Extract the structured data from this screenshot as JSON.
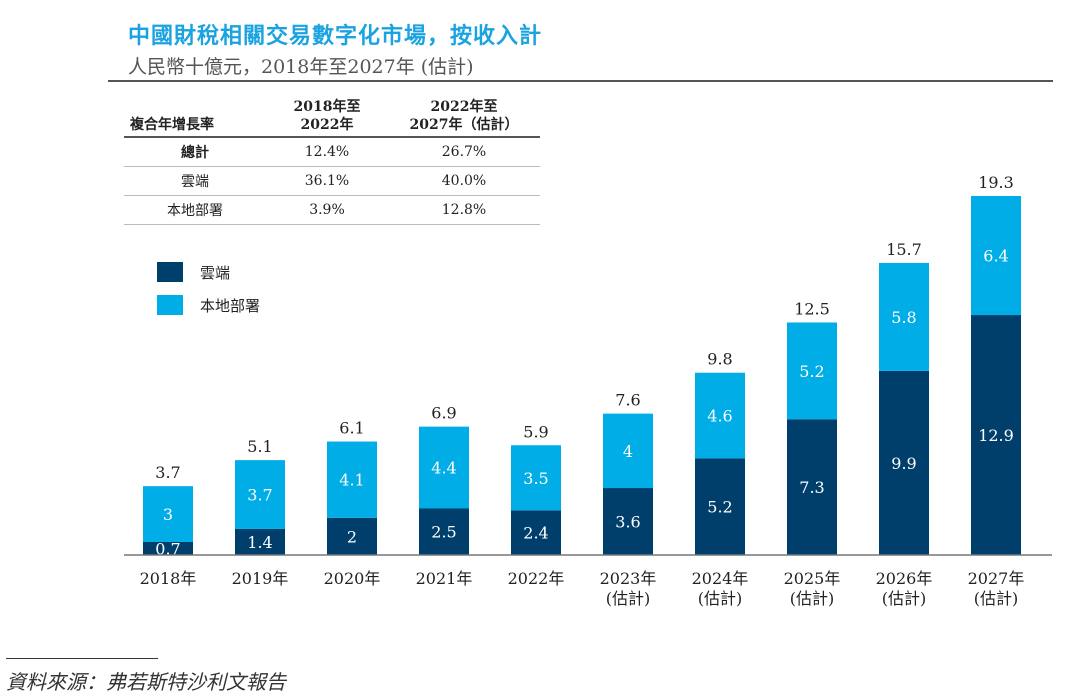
{
  "title": "中國財稅相關交易數字化市場，按收入計",
  "subtitle": "人民幣十億元，2018年至2027年 (估計)",
  "cagr_table": {
    "header": [
      "複合年增長率",
      "2018年至\n2022年",
      "2022年至\n2027年（估計）"
    ],
    "header_lines": [
      [
        "2018年至",
        "2022年"
      ],
      [
        "2022年至",
        "2027年（估計）"
      ]
    ],
    "rows": [
      {
        "label": "總計",
        "a": "12.4%",
        "b": "26.7%"
      },
      {
        "label": "雲端",
        "a": "36.1%",
        "b": "40.0%"
      },
      {
        "label": "本地部署",
        "a": "3.9%",
        "b": "12.8%"
      }
    ]
  },
  "source": "資料來源：弗若斯特沙利文報告",
  "chart_data": {
    "type": "bar",
    "stacked": true,
    "categories": [
      "2018年",
      "2019年",
      "2020年",
      "2021年",
      "2022年",
      "2023年\n(估計)",
      "2024年\n(估計)",
      "2025年\n(估計)",
      "2026年\n(估計)",
      "2027年\n(估計)"
    ],
    "category_lines": [
      [
        "2018年"
      ],
      [
        "2019年"
      ],
      [
        "2020年"
      ],
      [
        "2021年"
      ],
      [
        "2022年"
      ],
      [
        "2023年",
        "(估計)"
      ],
      [
        "2024年",
        "(估計)"
      ],
      [
        "2025年",
        "(估計)"
      ],
      [
        "2026年",
        "(估計)"
      ],
      [
        "2027年",
        "(估計)"
      ]
    ],
    "series": [
      {
        "name": "雲端",
        "color": "#003f6b",
        "values": [
          0.7,
          1.4,
          2.0,
          2.5,
          2.4,
          3.6,
          5.2,
          7.3,
          9.9,
          12.9
        ]
      },
      {
        "name": "本地部署",
        "color": "#00ade6",
        "values": [
          3.0,
          3.7,
          4.1,
          4.4,
          3.5,
          4.0,
          4.6,
          5.2,
          5.8,
          6.4
        ]
      }
    ],
    "totals": [
      3.7,
      5.1,
      6.1,
      6.9,
      5.9,
      7.6,
      9.8,
      12.5,
      15.7,
      19.3
    ],
    "ylim": [
      0,
      19.3
    ],
    "legend": "top-left",
    "grid": false
  }
}
